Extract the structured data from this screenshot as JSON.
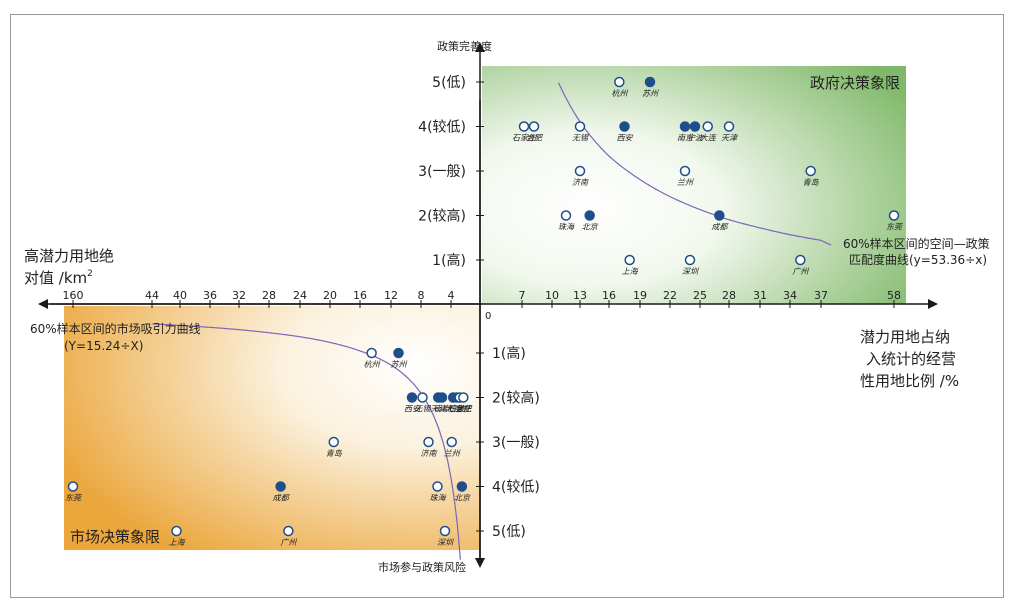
{
  "colors": {
    "green": "#3f9a3f",
    "orange": "#e3a441",
    "blue": "#1f4e8c",
    "curve": "#7c66b5",
    "axis": "#1a1a1a"
  },
  "labels": {
    "top_axis": "政策完善度",
    "left_axis_line1": "高潜力用地绝",
    "left_axis_line2": "对值 /km",
    "left_axis_sup": "2",
    "right_axis_line1": "潜力用地占纳",
    "right_axis_line2": "入统计的经营",
    "right_axis_line3": "性用地比例 /%",
    "bottom_axis": "市场参与政策风险",
    "gov_quadrant": "政府决策象限",
    "market_quadrant": "市场决策象限",
    "gov_curve_line1": "60%样本区间的空间—政策",
    "gov_curve_line2": "匹配度曲线(y=53.36÷x)",
    "market_curve_line1": "60%样本区间的市场吸引力曲线",
    "market_curve_line2": "(Y=15.24÷X)",
    "origin": "0"
  },
  "x_right_ticks": [
    "7",
    "10",
    "13",
    "16",
    "19",
    "22",
    "25",
    "28",
    "31",
    "34",
    "37",
    "58"
  ],
  "x_left_ticks": [
    "160",
    "44",
    "40",
    "36",
    "32",
    "28",
    "24",
    "20",
    "16",
    "12",
    "8",
    "4"
  ],
  "y_upper_ticks": [
    "1(高)",
    "2(较高)",
    "3(一般)",
    "4(较低)",
    "5(低)"
  ],
  "y_lower_ticks": [
    "1(高)",
    "2(较高)",
    "3(一般)",
    "4(较低)",
    "5(低)"
  ],
  "gov_points": [
    {
      "city": "杭州",
      "x": 17,
      "y": 5,
      "filled": false
    },
    {
      "city": "苏州",
      "x": 20,
      "y": 5,
      "filled": true
    },
    {
      "city": "石家庄",
      "x": 7.2,
      "y": 4,
      "filled": false
    },
    {
      "city": "合肥",
      "x": 8.2,
      "y": 4,
      "filled": false
    },
    {
      "city": "无锡",
      "x": 13,
      "y": 4,
      "filled": false
    },
    {
      "city": "西安",
      "x": 17.5,
      "y": 4,
      "filled": true
    },
    {
      "city": "南京",
      "x": 23.5,
      "y": 4,
      "filled": true
    },
    {
      "city": "宁波",
      "x": 24.5,
      "y": 4,
      "filled": true
    },
    {
      "city": "大连",
      "x": 25.8,
      "y": 4,
      "filled": false
    },
    {
      "city": "天津",
      "x": 28,
      "y": 4,
      "filled": false
    },
    {
      "city": "济南",
      "x": 13,
      "y": 3,
      "filled": false
    },
    {
      "city": "兰州",
      "x": 23.5,
      "y": 3,
      "filled": false
    },
    {
      "city": "青岛",
      "x": 36,
      "y": 3,
      "filled": false
    },
    {
      "city": "珠海",
      "x": 11.5,
      "y": 2,
      "filled": false
    },
    {
      "city": "北京",
      "x": 14,
      "y": 2,
      "filled": true
    },
    {
      "city": "成都",
      "x": 27,
      "y": 2,
      "filled": true
    },
    {
      "city": "东莞",
      "x": 58,
      "y": 2,
      "filled": false
    },
    {
      "city": "上海",
      "x": 18,
      "y": 1,
      "filled": false
    },
    {
      "city": "深圳",
      "x": 24,
      "y": 1,
      "filled": false
    },
    {
      "city": "广州",
      "x": 35,
      "y": 1,
      "filled": false
    }
  ],
  "market_points": [
    {
      "city": "杭州",
      "x": 14.5,
      "y": 1,
      "filled": false
    },
    {
      "city": "苏州",
      "x": 11,
      "y": 1,
      "filled": true
    },
    {
      "city": "西安",
      "x": 9.2,
      "y": 2,
      "filled": true
    },
    {
      "city": "无锡",
      "x": 7.8,
      "y": 2,
      "filled": false
    },
    {
      "city": "天津",
      "x": 5.7,
      "y": 2,
      "filled": true
    },
    {
      "city": "南京",
      "x": 5.2,
      "y": 2,
      "filled": true
    },
    {
      "city": "大连",
      "x": 3.7,
      "y": 2,
      "filled": true
    },
    {
      "city": "宁波",
      "x": 3.2,
      "y": 2,
      "filled": true
    },
    {
      "city": "石家庄",
      "x": 2.8,
      "y": 2,
      "filled": false
    },
    {
      "city": "合肥",
      "x": 2.3,
      "y": 2,
      "filled": false
    },
    {
      "city": "青岛",
      "x": 19.5,
      "y": 3,
      "filled": false
    },
    {
      "city": "济南",
      "x": 7.0,
      "y": 3,
      "filled": false
    },
    {
      "city": "兰州",
      "x": 3.9,
      "y": 3,
      "filled": false
    },
    {
      "city": "东莞",
      "x": 160,
      "y": 4,
      "filled": false
    },
    {
      "city": "成都",
      "x": 26.5,
      "y": 4,
      "filled": true
    },
    {
      "city": "珠海",
      "x": 5.8,
      "y": 4,
      "filled": false
    },
    {
      "city": "北京",
      "x": 2.5,
      "y": 4,
      "filled": true
    },
    {
      "city": "上海",
      "x": 40.5,
      "y": 5,
      "filled": false
    },
    {
      "city": "广州",
      "x": 25.5,
      "y": 5,
      "filled": false
    },
    {
      "city": "深圳",
      "x": 4.8,
      "y": 5,
      "filled": false
    }
  ]
}
